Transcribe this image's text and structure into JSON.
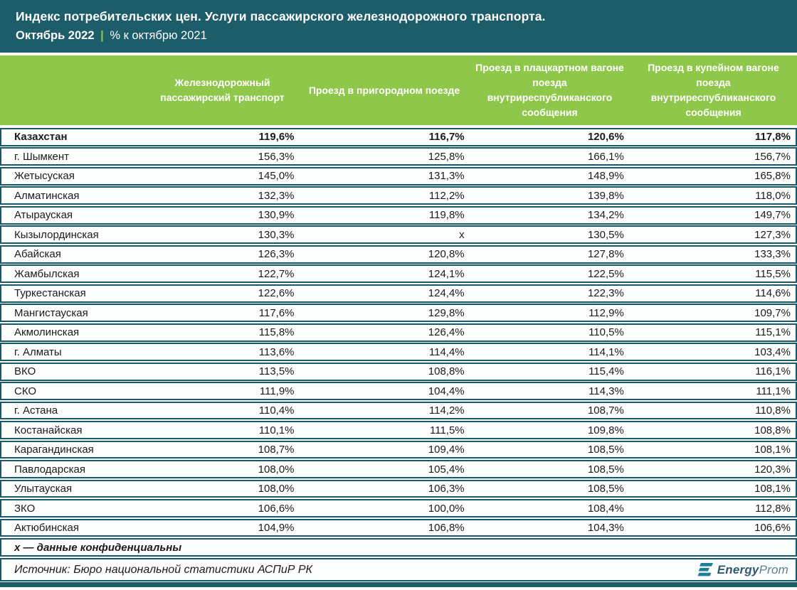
{
  "header": {
    "title": "Индекс потребительских цен. Услуги пассажирского железнодорожного транспорта.",
    "period": "Октябрь 2022",
    "pipe": "|",
    "subtitle": "% к октябрю 2021"
  },
  "chart_data": {
    "type": "table",
    "title": "Индекс потребительских цен. Услуги пассажирского железнодорожного транспорта.",
    "subtitle": "Октябрь 2022 | % к октябрю 2021",
    "unit": "% к октябрю 2021",
    "columns": [
      "Железнодорожный пассажирский транспорт",
      "Проезд в пригородном поезде",
      "Проезд в плацкартном вагоне поезда внутриреспубликанского сообщения",
      "Проезд в купейном вагоне поезда внутриреспубликанского сообщения"
    ],
    "rows": [
      {
        "region": "Казахстан",
        "values": [
          "119,6%",
          "116,7%",
          "120,6%",
          "117,8%"
        ],
        "bold": true
      },
      {
        "region": "г. Шымкент",
        "values": [
          "156,3%",
          "125,8%",
          "166,1%",
          "156,7%"
        ],
        "bold": false
      },
      {
        "region": "Жетысуская",
        "values": [
          "145,0%",
          "131,3%",
          "148,9%",
          "165,8%"
        ],
        "bold": false
      },
      {
        "region": "Алматинская",
        "values": [
          "132,3%",
          "112,2%",
          "139,8%",
          "118,0%"
        ],
        "bold": false
      },
      {
        "region": "Атырауская",
        "values": [
          "130,9%",
          "119,8%",
          "134,2%",
          "149,7%"
        ],
        "bold": false
      },
      {
        "region": "Кызылординская",
        "values": [
          "130,3%",
          "х",
          "130,5%",
          "127,3%"
        ],
        "bold": false
      },
      {
        "region": "Абайская",
        "values": [
          "126,3%",
          "120,8%",
          "127,8%",
          "133,3%"
        ],
        "bold": false
      },
      {
        "region": "Жамбылская",
        "values": [
          "122,7%",
          "124,1%",
          "122,5%",
          "115,5%"
        ],
        "bold": false
      },
      {
        "region": "Туркестанская",
        "values": [
          "122,6%",
          "124,4%",
          "122,3%",
          "114,6%"
        ],
        "bold": false
      },
      {
        "region": "Мангистауская",
        "values": [
          "117,6%",
          "129,8%",
          "112,9%",
          "109,7%"
        ],
        "bold": false
      },
      {
        "region": "Акмолинская",
        "values": [
          "115,8%",
          "126,4%",
          "110,5%",
          "115,1%"
        ],
        "bold": false
      },
      {
        "region": "г. Алматы",
        "values": [
          "113,6%",
          "114,4%",
          "114,1%",
          "103,4%"
        ],
        "bold": false
      },
      {
        "region": "ВКО",
        "values": [
          "113,5%",
          "108,8%",
          "115,4%",
          "116,1%"
        ],
        "bold": false
      },
      {
        "region": "СКО",
        "values": [
          "111,9%",
          "104,4%",
          "114,3%",
          "111,1%"
        ],
        "bold": false
      },
      {
        "region": "г. Астана",
        "values": [
          "110,4%",
          "114,2%",
          "108,7%",
          "110,8%"
        ],
        "bold": false
      },
      {
        "region": "Костанайская",
        "values": [
          "110,1%",
          "111,5%",
          "109,8%",
          "108,8%"
        ],
        "bold": false
      },
      {
        "region": "Карагандинская",
        "values": [
          "108,7%",
          "109,4%",
          "108,5%",
          "108,1%"
        ],
        "bold": false
      },
      {
        "region": "Павлодарская",
        "values": [
          "108,0%",
          "105,4%",
          "108,5%",
          "120,3%"
        ],
        "bold": false
      },
      {
        "region": "Улытауская",
        "values": [
          "108,0%",
          "106,3%",
          "108,5%",
          "108,1%"
        ],
        "bold": false
      },
      {
        "region": "ЗКО",
        "values": [
          "106,6%",
          "100,0%",
          "108,4%",
          "112,8%"
        ],
        "bold": false
      },
      {
        "region": "Актюбинская",
        "values": [
          "104,9%",
          "106,8%",
          "104,3%",
          "106,6%"
        ],
        "bold": false
      }
    ],
    "footnote": "х — данные конфиденциальны",
    "source": "Источник: Бюро национальной статистики АСПиР РК"
  },
  "logo": {
    "energy": "Energy",
    "prom": "Prom"
  },
  "colors": {
    "header_bg": "#1d5c69",
    "accent_green": "#8fc74a",
    "row_border": "#17586b",
    "logo_teal": "#1f7f95"
  }
}
